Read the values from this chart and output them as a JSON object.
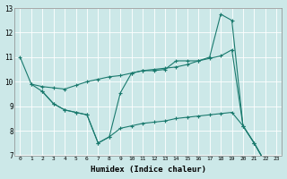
{
  "xlabel": "Humidex (Indice chaleur)",
  "bg_color": "#cce8e8",
  "line_color": "#1a7a6e",
  "grid_color": "#b0d8d8",
  "xlim": [
    -0.5,
    23.5
  ],
  "ylim": [
    7,
    13
  ],
  "xticks": [
    0,
    1,
    2,
    3,
    4,
    5,
    6,
    7,
    8,
    9,
    10,
    11,
    12,
    13,
    14,
    15,
    16,
    17,
    18,
    19,
    20,
    21,
    22,
    23
  ],
  "yticks": [
    7,
    8,
    9,
    10,
    11,
    12,
    13
  ],
  "line1_x": [
    0,
    1,
    2,
    3,
    4,
    5,
    6,
    7,
    8,
    9,
    10,
    11,
    12,
    13,
    14,
    15,
    16,
    17,
    18,
    19,
    20,
    21,
    22,
    23
  ],
  "line1_y": [
    11.0,
    9.9,
    9.6,
    9.1,
    8.85,
    8.75,
    8.65,
    7.5,
    7.75,
    9.55,
    10.35,
    10.45,
    10.45,
    10.5,
    10.85,
    10.85,
    10.85,
    11.0,
    12.75,
    12.5,
    8.2,
    7.5,
    6.7,
    6.65
  ],
  "line2_x": [
    1,
    2,
    3,
    4,
    5,
    6,
    7,
    8,
    9,
    10,
    11,
    12,
    13,
    14,
    15,
    16,
    17,
    18,
    19,
    20,
    21,
    22,
    23
  ],
  "line2_y": [
    9.9,
    9.8,
    9.75,
    9.7,
    9.85,
    10.0,
    10.1,
    10.2,
    10.25,
    10.35,
    10.45,
    10.5,
    10.55,
    10.6,
    10.7,
    10.85,
    10.95,
    11.05,
    11.3,
    8.2,
    7.5,
    6.7,
    6.65
  ],
  "line3_x": [
    2,
    3,
    4,
    5,
    6,
    7,
    8,
    9,
    10,
    11,
    12,
    13,
    14,
    15,
    16,
    17,
    18,
    19,
    20,
    21,
    22,
    23
  ],
  "line3_y": [
    9.6,
    9.1,
    8.85,
    8.75,
    8.65,
    7.5,
    7.75,
    8.1,
    8.2,
    8.3,
    8.35,
    8.4,
    8.5,
    8.55,
    8.6,
    8.65,
    8.7,
    8.75,
    8.2,
    7.5,
    6.7,
    6.65
  ]
}
